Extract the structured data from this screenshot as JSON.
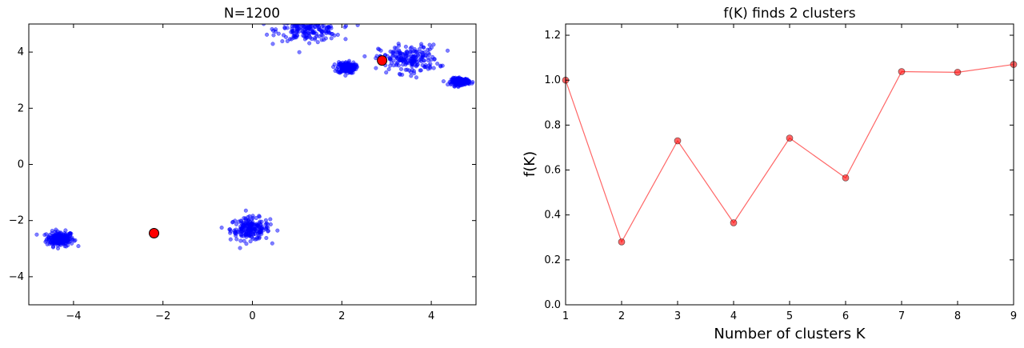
{
  "chart_data": [
    {
      "type": "scatter",
      "title": "N=1200",
      "xlabel": "",
      "ylabel": "",
      "xlim": [
        -5,
        5
      ],
      "ylim": [
        -5,
        5
      ],
      "xticks": [
        -4,
        -2,
        0,
        2,
        4
      ],
      "yticks": [
        -4,
        -2,
        0,
        2,
        4
      ],
      "xtick_labels": [
        "−4",
        "−2",
        "0",
        "2",
        "4"
      ],
      "ytick_labels": [
        "−4",
        "−2",
        "0",
        "2",
        "4"
      ],
      "grid": false,
      "clusters": [
        {
          "cx": -4.3,
          "cy": -2.65,
          "sx": 0.15,
          "sy": 0.13,
          "n": 200
        },
        {
          "cx": -0.05,
          "cy": -2.3,
          "sx": 0.22,
          "sy": 0.2,
          "n": 200
        },
        {
          "cx": 1.25,
          "cy": 4.8,
          "sx": 0.35,
          "sy": 0.2,
          "n": 200
        },
        {
          "cx": 2.1,
          "cy": 3.45,
          "sx": 0.1,
          "sy": 0.1,
          "n": 200
        },
        {
          "cx": 3.5,
          "cy": 3.75,
          "sx": 0.33,
          "sy": 0.25,
          "n": 200
        },
        {
          "cx": 4.65,
          "cy": 2.95,
          "sx": 0.1,
          "sy": 0.06,
          "n": 200
        }
      ],
      "centroids": [
        {
          "x": -2.2,
          "y": -2.45
        },
        {
          "x": 2.9,
          "y": 3.7
        }
      ],
      "colors": {
        "points": "#0000ff",
        "centroids": "#ff0000"
      }
    },
    {
      "type": "line",
      "title": "f(K) finds 2 clusters",
      "xlabel": "Number of clusters K",
      "ylabel": "f(K)",
      "x": [
        1,
        2,
        3,
        4,
        5,
        6,
        7,
        8,
        9
      ],
      "y": [
        1.0,
        0.28,
        0.73,
        0.365,
        0.742,
        0.565,
        1.038,
        1.035,
        1.07
      ],
      "xlim": [
        1,
        9
      ],
      "ylim": [
        0,
        1.25
      ],
      "xticks": [
        1,
        2,
        3,
        4,
        5,
        6,
        7,
        8,
        9
      ],
      "yticks": [
        0.0,
        0.2,
        0.4,
        0.6,
        0.8,
        1.0,
        1.2
      ],
      "xtick_labels": [
        "1",
        "2",
        "3",
        "4",
        "5",
        "6",
        "7",
        "8",
        "9"
      ],
      "ytick_labels": [
        "0.0",
        "0.2",
        "0.4",
        "0.6",
        "0.8",
        "1.0",
        "1.2"
      ],
      "grid": false,
      "colors": {
        "line": "#ff0000"
      }
    }
  ]
}
